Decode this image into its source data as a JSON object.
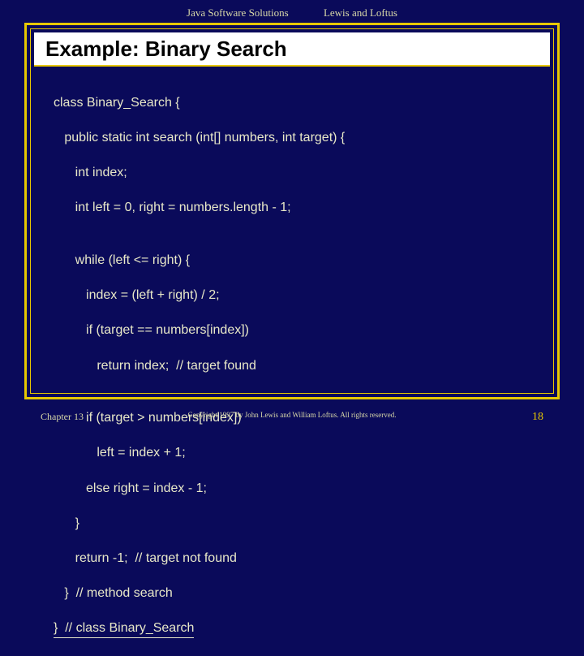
{
  "header": {
    "left": "Java Software Solutions",
    "right": "Lewis and Loftus"
  },
  "title": "Example: Binary Search",
  "code": {
    "lines": [
      "class Binary_Search {",
      "   public static int search (int[] numbers, int target) {",
      "      int index;",
      "      int left = 0, right = numbers.length - 1;",
      "",
      "      while (left <= right) {",
      "         index = (left + right) / 2;",
      "         if (target == numbers[index])",
      "            return index;  // target found",
      "",
      "         if (target > numbers[index])",
      "            left = index + 1;",
      "         else right = index - 1;",
      "      }",
      "      return -1;  // target not found",
      "   }  // method search",
      "}  // class Binary_Search"
    ]
  },
  "footer": {
    "chapter": "Chapter 13",
    "copyright": "Copyright 1997 by John Lewis and William Loftus.  All rights reserved.",
    "page": "18"
  },
  "colors": {
    "background": "#0a0a5a",
    "border": "#e8c800",
    "text": "#e8e8c8",
    "title_bg": "#ffffff",
    "title_text": "#000000"
  }
}
